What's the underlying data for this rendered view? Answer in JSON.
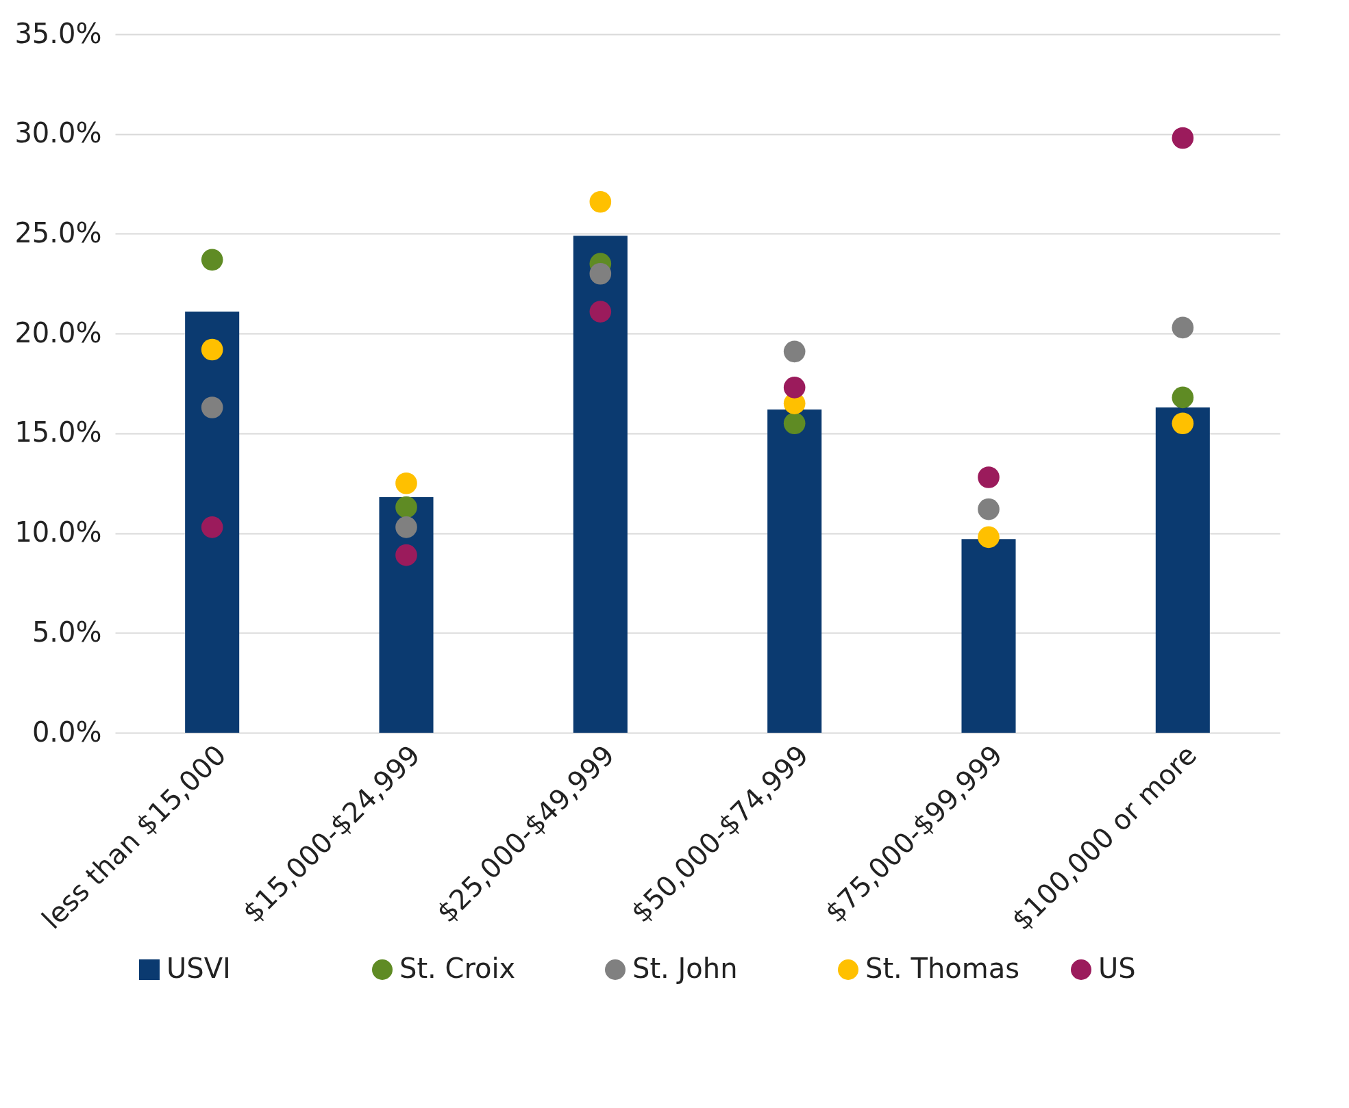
{
  "chart_data": {
    "type": "bar",
    "categories": [
      "less than $15,000",
      "$15,000-$24,999",
      "$25,000-$49,999",
      "$50,000-$74,999",
      "$75,000-$99,999",
      "$100,000 or more"
    ],
    "series": [
      {
        "name": "USVI",
        "type": "bar",
        "color": "#0b3a70",
        "values": [
          21.1,
          11.8,
          24.9,
          16.2,
          9.7,
          16.3
        ]
      },
      {
        "name": "St. Croix",
        "type": "scatter",
        "color": "#5f8b24",
        "values": [
          23.7,
          11.3,
          23.5,
          15.5,
          null,
          16.8
        ]
      },
      {
        "name": "St. John",
        "type": "scatter",
        "color": "#808080",
        "values": [
          16.3,
          10.3,
          23.0,
          19.1,
          11.2,
          20.3
        ]
      },
      {
        "name": "St. Thomas",
        "type": "scatter",
        "color": "#ffc000",
        "values": [
          19.2,
          12.5,
          26.6,
          16.5,
          9.8,
          15.5
        ]
      },
      {
        "name": "US",
        "type": "scatter",
        "color": "#9b1b5c",
        "values": [
          10.3,
          8.9,
          21.1,
          17.3,
          12.8,
          29.8
        ]
      }
    ],
    "ylim": [
      0,
      35
    ],
    "yticks": [
      {
        "value": 0,
        "label": "0.0%"
      },
      {
        "value": 5,
        "label": "5.0%"
      },
      {
        "value": 10,
        "label": "10.0%"
      },
      {
        "value": 15,
        "label": "15.0%"
      },
      {
        "value": 20,
        "label": "20.0%"
      },
      {
        "value": 25,
        "label": "25.0%"
      },
      {
        "value": 30,
        "label": "30.0%"
      },
      {
        "value": 35,
        "label": "35.0%"
      }
    ],
    "grid": "y",
    "legend": "bottom",
    "marker": "circle"
  }
}
